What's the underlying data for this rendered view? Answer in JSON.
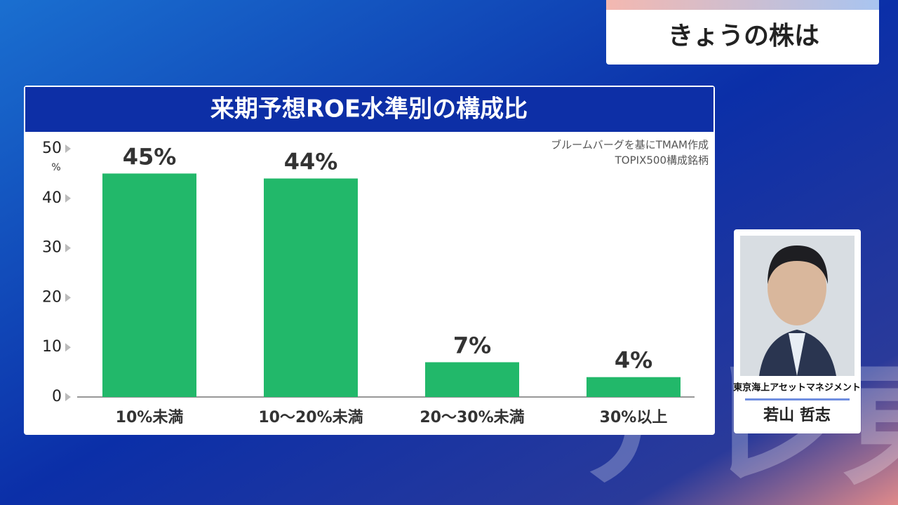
{
  "header": {
    "title": "きょうの株は"
  },
  "chart_data": {
    "type": "bar",
    "title": "来期予想ROE水準別の構成比",
    "unit": "%",
    "source": [
      "ブルームバーグを基にTMAM作成",
      "TOPIX500構成銘柄"
    ],
    "categories": [
      "10%未満",
      "10〜20%未満",
      "20〜30%未満",
      "30%以上"
    ],
    "values": [
      45,
      44,
      7,
      4
    ],
    "value_labels": [
      "45%",
      "44%",
      "7%",
      "4%"
    ],
    "color": "#22b86a",
    "ylim": [
      0,
      50
    ],
    "yticks": [
      0,
      10,
      20,
      30,
      40,
      50
    ]
  },
  "guest": {
    "company": "東京海上アセットマネジメント",
    "name": "若山 哲志"
  },
  "logo": "テレ東"
}
